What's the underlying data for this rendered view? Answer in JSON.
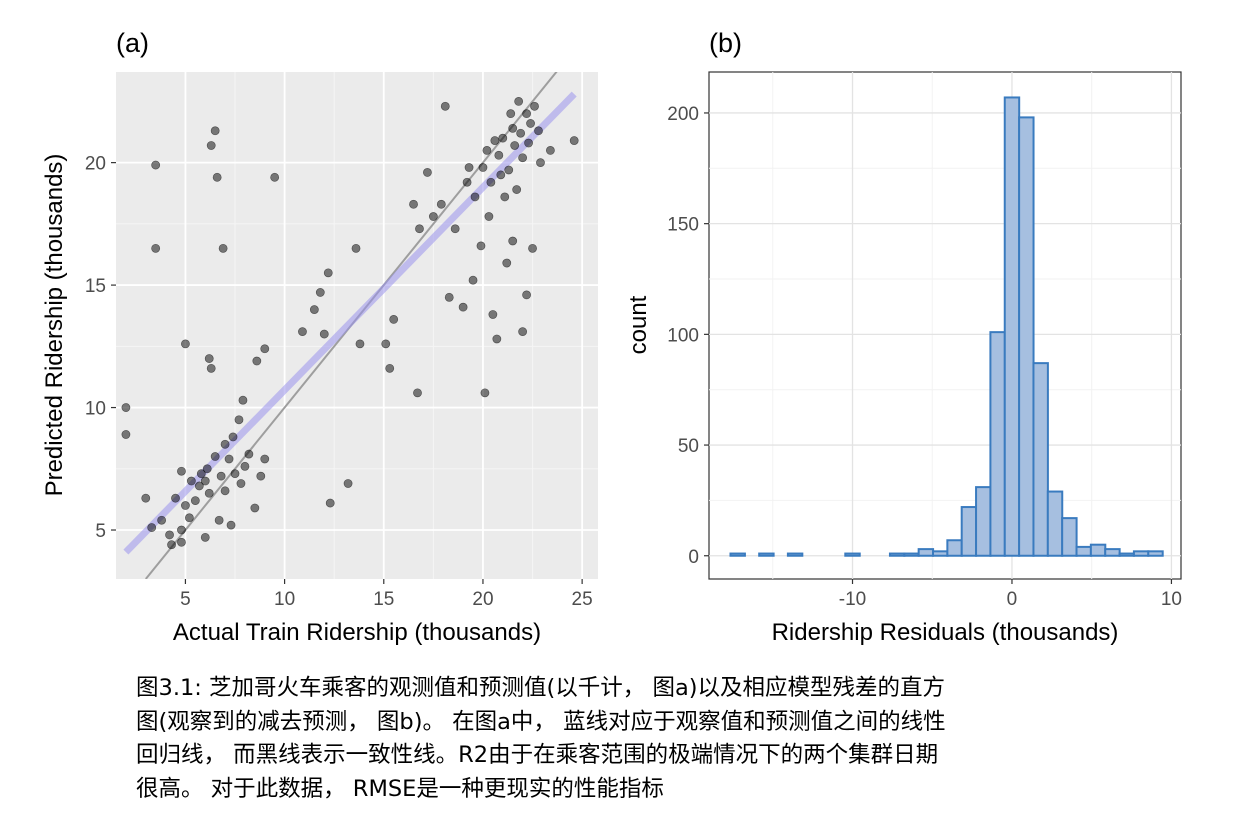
{
  "chart_data": [
    {
      "type": "scatter",
      "panel_label": "(a)",
      "xlabel": "Actual Train Ridership (thousands)",
      "ylabel": "Predicted Ridership (thousands)",
      "xlim": [
        1.5,
        25.8
      ],
      "ylim": [
        3.0,
        23.7
      ],
      "xticks": [
        5,
        10,
        15,
        20,
        25
      ],
      "yticks": [
        5,
        10,
        15,
        20
      ],
      "grid": true,
      "background": "#ebebeb",
      "point_color": "#000000",
      "identity_line": {
        "color": "#9e9e9e",
        "x": [
          3.0,
          25.8
        ],
        "y": [
          3.0,
          25.8
        ]
      },
      "fit_line": {
        "color": "#9b93ec",
        "x": [
          2.0,
          24.6
        ],
        "y": [
          4.1,
          22.8
        ]
      },
      "points": [
        [
          2.0,
          10.0
        ],
        [
          2.0,
          8.9
        ],
        [
          3.0,
          6.3
        ],
        [
          3.3,
          5.1
        ],
        [
          3.5,
          19.9
        ],
        [
          3.5,
          16.5
        ],
        [
          3.8,
          5.4
        ],
        [
          4.2,
          4.8
        ],
        [
          4.3,
          4.4
        ],
        [
          4.5,
          6.3
        ],
        [
          4.8,
          4.5
        ],
        [
          4.8,
          5.0
        ],
        [
          4.8,
          7.4
        ],
        [
          5.0,
          6.0
        ],
        [
          5.0,
          12.6
        ],
        [
          5.2,
          5.5
        ],
        [
          5.3,
          7.0
        ],
        [
          5.5,
          6.2
        ],
        [
          5.7,
          6.8
        ],
        [
          5.8,
          7.3
        ],
        [
          6.0,
          4.7
        ],
        [
          6.0,
          7.0
        ],
        [
          6.1,
          7.5
        ],
        [
          6.2,
          6.5
        ],
        [
          6.2,
          12.0
        ],
        [
          6.3,
          20.7
        ],
        [
          6.3,
          11.6
        ],
        [
          6.5,
          21.3
        ],
        [
          6.5,
          8.0
        ],
        [
          6.6,
          19.4
        ],
        [
          6.7,
          5.4
        ],
        [
          6.8,
          7.2
        ],
        [
          6.9,
          16.5
        ],
        [
          7.0,
          6.6
        ],
        [
          7.0,
          8.5
        ],
        [
          7.2,
          7.9
        ],
        [
          7.3,
          5.2
        ],
        [
          7.4,
          8.8
        ],
        [
          7.5,
          7.3
        ],
        [
          7.7,
          9.5
        ],
        [
          7.8,
          6.9
        ],
        [
          7.9,
          10.3
        ],
        [
          8.0,
          7.6
        ],
        [
          8.2,
          8.1
        ],
        [
          8.5,
          5.9
        ],
        [
          8.8,
          7.2
        ],
        [
          9.0,
          12.4
        ],
        [
          9.5,
          19.4
        ],
        [
          9.0,
          7.9
        ],
        [
          8.6,
          11.9
        ],
        [
          10.9,
          13.1
        ],
        [
          11.5,
          14.0
        ],
        [
          11.8,
          14.7
        ],
        [
          12.0,
          13.0
        ],
        [
          12.2,
          15.5
        ],
        [
          12.3,
          6.1
        ],
        [
          13.2,
          6.9
        ],
        [
          13.6,
          16.5
        ],
        [
          13.8,
          12.6
        ],
        [
          15.1,
          12.6
        ],
        [
          15.3,
          11.6
        ],
        [
          15.5,
          13.6
        ],
        [
          16.5,
          18.3
        ],
        [
          16.7,
          10.6
        ],
        [
          16.8,
          17.3
        ],
        [
          17.2,
          19.6
        ],
        [
          17.5,
          17.8
        ],
        [
          17.9,
          18.3
        ],
        [
          18.1,
          22.3
        ],
        [
          18.3,
          14.5
        ],
        [
          18.6,
          17.3
        ],
        [
          19.0,
          14.1
        ],
        [
          19.2,
          19.2
        ],
        [
          19.5,
          15.2
        ],
        [
          19.9,
          16.6
        ],
        [
          20.1,
          10.6
        ],
        [
          20.3,
          17.8
        ],
        [
          20.5,
          13.8
        ],
        [
          20.7,
          12.8
        ],
        [
          21.2,
          15.9
        ],
        [
          21.5,
          16.8
        ],
        [
          22.0,
          13.1
        ],
        [
          22.2,
          14.6
        ],
        [
          22.5,
          16.5
        ],
        [
          22.9,
          20.0
        ],
        [
          23.4,
          20.5
        ],
        [
          24.6,
          20.9
        ],
        [
          20.8,
          20.3
        ],
        [
          21.0,
          21.0
        ],
        [
          21.3,
          19.7
        ],
        [
          21.6,
          20.7
        ],
        [
          21.9,
          21.2
        ],
        [
          22.2,
          22.0
        ],
        [
          22.4,
          21.6
        ],
        [
          20.4,
          19.2
        ],
        [
          20.0,
          19.8
        ],
        [
          21.1,
          18.6
        ],
        [
          21.7,
          18.9
        ],
        [
          22.8,
          21.3
        ],
        [
          22.0,
          20.2
        ],
        [
          21.4,
          22.0
        ],
        [
          20.6,
          20.9
        ],
        [
          20.2,
          20.5
        ],
        [
          21.8,
          22.5
        ],
        [
          22.6,
          22.3
        ],
        [
          19.6,
          18.6
        ],
        [
          19.3,
          19.8
        ],
        [
          22.3,
          20.8
        ],
        [
          20.9,
          19.5
        ],
        [
          21.5,
          21.4
        ]
      ]
    },
    {
      "type": "bar",
      "panel_label": "(b)",
      "xlabel": "Ridership Residuals (thousands)",
      "ylabel": "count",
      "xlim": [
        -19.0,
        10.6
      ],
      "ylim": [
        -10.5,
        218.5
      ],
      "xticks": [
        -10,
        0,
        10
      ],
      "yticks": [
        0,
        50,
        100,
        150,
        200
      ],
      "grid": true,
      "background": "#ffffff",
      "bar_fill": "#a6bfe0",
      "bar_stroke": "#3a7bbf",
      "bin_width": 0.905,
      "bins": [
        {
          "x": -17.2,
          "count": 1
        },
        {
          "x": -15.4,
          "count": 1
        },
        {
          "x": -13.6,
          "count": 1
        },
        {
          "x": -10.0,
          "count": 1
        },
        {
          "x": -7.2,
          "count": 1
        },
        {
          "x": -6.3,
          "count": 1
        },
        {
          "x": -5.4,
          "count": 3
        },
        {
          "x": -4.5,
          "count": 2
        },
        {
          "x": -3.6,
          "count": 7
        },
        {
          "x": -2.7,
          "count": 22
        },
        {
          "x": -1.8,
          "count": 31
        },
        {
          "x": -0.9,
          "count": 101
        },
        {
          "x": 0.0,
          "count": 207
        },
        {
          "x": 0.9,
          "count": 198
        },
        {
          "x": 1.8,
          "count": 87
        },
        {
          "x": 2.7,
          "count": 29
        },
        {
          "x": 3.6,
          "count": 17
        },
        {
          "x": 4.5,
          "count": 4
        },
        {
          "x": 5.4,
          "count": 5
        },
        {
          "x": 6.3,
          "count": 3
        },
        {
          "x": 7.2,
          "count": 1
        },
        {
          "x": 8.1,
          "count": 2
        },
        {
          "x": 9.0,
          "count": 2
        }
      ]
    }
  ],
  "caption": {
    "lines": [
      "图3.1: 芝加哥火车乘客的观测值和预测值(以千计， 图a)以及相应模型残差的直方",
      "图(观察到的减去预测， 图b)。 在图a中， 蓝线对应于观察值和预测值之间的线性",
      "回归线， 而黑线表示一致性线。R2由于在乘客范围的极端情况下的两个集群日期",
      "很高。 对于此数据， RMSE是一种更现实的性能指标"
    ]
  }
}
